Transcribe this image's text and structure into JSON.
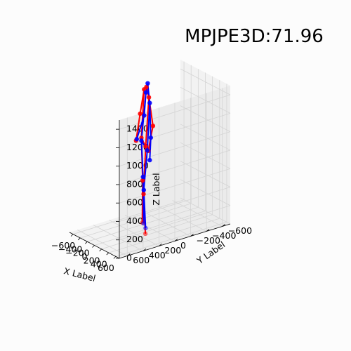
{
  "chart_data": {
    "type": "scatter",
    "title": "MPJPE3D:71.96",
    "xlabel": "X Label",
    "ylabel": "Y Label",
    "zlabel": "Z Label",
    "xticks": [
      "−600",
      "−400",
      "−200",
      "0",
      "200",
      "400",
      "600"
    ],
    "yticks": [
      "−600",
      "−400",
      "−200",
      "0",
      "200",
      "400",
      "600"
    ],
    "zticks": [
      "0",
      "200",
      "400",
      "600",
      "800",
      "1000",
      "1200",
      "1400"
    ],
    "xlim": [
      -700,
      700
    ],
    "ylim": [
      -700,
      700
    ],
    "zlim": [
      0,
      1500
    ],
    "grid": true,
    "series": [
      {
        "color": "#ff0000",
        "edges": [
          [
            0,
            1
          ],
          [
            0,
            2
          ],
          [
            1,
            3
          ],
          [
            3,
            5
          ],
          [
            2,
            4
          ],
          [
            4,
            6
          ],
          [
            1,
            7
          ],
          [
            2,
            8
          ],
          [
            7,
            8
          ],
          [
            7,
            9
          ],
          [
            9,
            11
          ],
          [
            8,
            10
          ],
          [
            10,
            12
          ]
        ],
        "x": [
          -10,
          -140,
          150,
          -230,
          220,
          -300,
          110,
          -150,
          60,
          -70,
          90,
          -80,
          140
        ],
        "y": [
          40,
          10,
          80,
          20,
          60,
          40,
          70,
          40,
          80,
          60,
          120,
          60,
          120
        ],
        "z": [
          1540,
          1480,
          1470,
          1200,
          1170,
          900,
          880,
          960,
          920,
          520,
          420,
          60,
          0
        ]
      },
      {
        "color": "#0000ff",
        "edges": [
          [
            0,
            1
          ],
          [
            0,
            2
          ],
          [
            1,
            3
          ],
          [
            3,
            5
          ],
          [
            2,
            4
          ],
          [
            4,
            6
          ],
          [
            1,
            7
          ],
          [
            2,
            8
          ],
          [
            7,
            8
          ],
          [
            7,
            9
          ],
          [
            9,
            11
          ],
          [
            8,
            10
          ],
          [
            10,
            12
          ]
        ],
        "x": [
          5,
          -110,
          130,
          -160,
          160,
          -280,
          130,
          -150,
          60,
          -60,
          50,
          -40,
          80
        ],
        "y": [
          30,
          0,
          60,
          0,
          60,
          40,
          60,
          40,
          60,
          60,
          100,
          60,
          90
        ],
        "z": [
          1580,
          1450,
          1400,
          1190,
          1030,
          920,
          780,
          930,
          870,
          560,
          450,
          60,
          40
        ]
      }
    ]
  }
}
